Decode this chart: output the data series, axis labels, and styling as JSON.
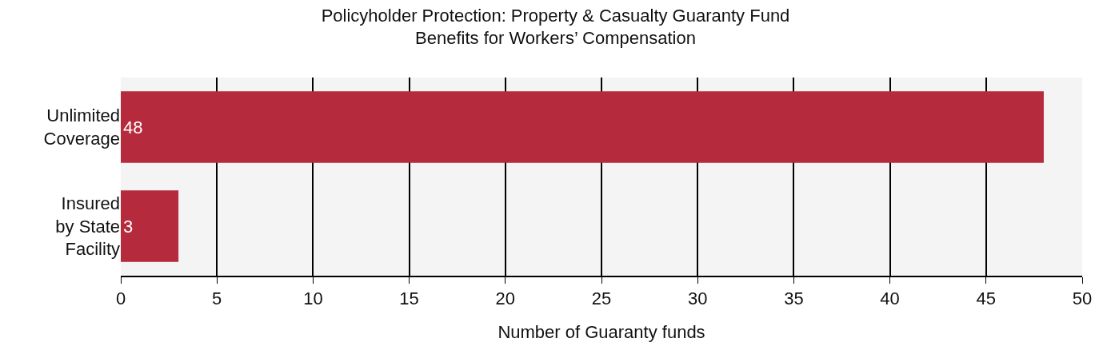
{
  "chart_data": {
    "type": "bar",
    "orientation": "horizontal",
    "title": "Policyholder Protection: Property & Casualty Guaranty Fund\nBenefits for Workers’ Compensation",
    "xlabel": "Number of Guaranty funds",
    "categories": [
      "Unlimited\nCoverage",
      "Insured\nby State\nFacility"
    ],
    "values": [
      48,
      3
    ],
    "color": "#b52a3c",
    "data_labels": true,
    "xlim": [
      0,
      50
    ],
    "xticks": [
      0,
      5,
      10,
      15,
      20,
      25,
      30,
      35,
      40,
      45,
      50
    ],
    "grid": "x"
  }
}
